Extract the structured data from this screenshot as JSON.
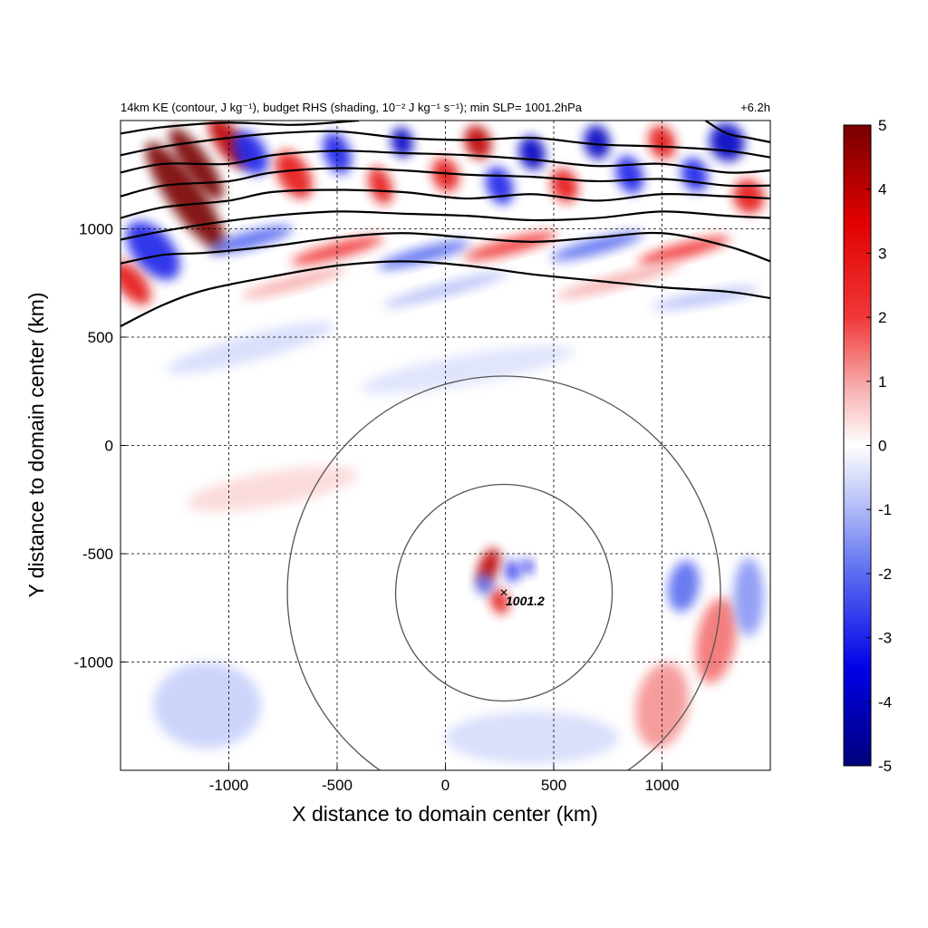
{
  "chart_data": {
    "type": "heatmap",
    "title_left": "14km KE (contour, J kg⁻¹), budget RHS (shading, 10⁻² J kg⁻¹ s⁻¹); min SLP= 1001.2hPa",
    "title_right": "+6.2h",
    "xlabel": "X distance to domain center (km)",
    "ylabel": "Y distance to domain center (km)",
    "xlim": [
      -1500,
      1500
    ],
    "ylim": [
      -1500,
      1500
    ],
    "x_ticks": [
      -1000,
      -500,
      0,
      500,
      1000
    ],
    "y_ticks": [
      1000,
      500,
      0,
      -500,
      -1000
    ],
    "grid": "dashed",
    "colorbar": {
      "min": -5,
      "max": 5,
      "ticks": [
        5,
        4,
        3,
        2,
        1,
        0,
        -1,
        -2,
        -3,
        -4,
        -5
      ],
      "colormap": "blue-white-red diverging",
      "colors": [
        "#00007a",
        "#0000e6",
        "#5a6cf0",
        "#c8d0fa",
        "#ffffff",
        "#f8c0c0",
        "#f03030",
        "#e00000",
        "#780000"
      ]
    },
    "storm_center": {
      "x": 270,
      "y": -680,
      "label": "1001.2"
    },
    "radius_circles_km": [
      500,
      1000
    ],
    "ke_contours": [
      {
        "points": [
          [
            -1500,
            550
          ],
          [
            -1300,
            650
          ],
          [
            -1100,
            720
          ],
          [
            -800,
            780
          ],
          [
            -500,
            830
          ],
          [
            -200,
            850
          ],
          [
            100,
            830
          ],
          [
            400,
            790
          ],
          [
            700,
            760
          ],
          [
            1000,
            730
          ],
          [
            1300,
            710
          ],
          [
            1500,
            680
          ]
        ]
      },
      {
        "points": [
          [
            -1500,
            840
          ],
          [
            -1300,
            880
          ],
          [
            -1100,
            890
          ],
          [
            -800,
            920
          ],
          [
            -500,
            960
          ],
          [
            -200,
            980
          ],
          [
            100,
            960
          ],
          [
            400,
            940
          ],
          [
            700,
            960
          ],
          [
            1000,
            980
          ],
          [
            1300,
            920
          ],
          [
            1500,
            850
          ]
        ]
      },
      {
        "points": [
          [
            -1500,
            950
          ],
          [
            -1300,
            990
          ],
          [
            -1050,
            1030
          ],
          [
            -800,
            1060
          ],
          [
            -500,
            1080
          ],
          [
            -200,
            1070
          ],
          [
            100,
            1060
          ],
          [
            400,
            1040
          ],
          [
            700,
            1050
          ],
          [
            1000,
            1080
          ],
          [
            1300,
            1060
          ],
          [
            1500,
            1050
          ]
        ]
      },
      {
        "points": [
          [
            -1500,
            1050
          ],
          [
            -1300,
            1100
          ],
          [
            -1000,
            1130
          ],
          [
            -800,
            1170
          ],
          [
            -500,
            1180
          ],
          [
            -200,
            1170
          ],
          [
            100,
            1140
          ],
          [
            400,
            1160
          ],
          [
            700,
            1130
          ],
          [
            1000,
            1160
          ],
          [
            1300,
            1150
          ],
          [
            1500,
            1140
          ]
        ]
      },
      {
        "points": [
          [
            -1500,
            1150
          ],
          [
            -1300,
            1200
          ],
          [
            -1000,
            1220
          ],
          [
            -800,
            1260
          ],
          [
            -500,
            1280
          ],
          [
            -200,
            1270
          ],
          [
            100,
            1250
          ],
          [
            400,
            1240
          ],
          [
            700,
            1220
          ],
          [
            1000,
            1230
          ],
          [
            1300,
            1200
          ],
          [
            1500,
            1200
          ]
        ]
      },
      {
        "points": [
          [
            -1500,
            1260
          ],
          [
            -1300,
            1300
          ],
          [
            -1000,
            1300
          ],
          [
            -800,
            1340
          ],
          [
            -500,
            1360
          ],
          [
            -200,
            1350
          ],
          [
            100,
            1340
          ],
          [
            400,
            1320
          ],
          [
            700,
            1290
          ],
          [
            1000,
            1300
          ],
          [
            1300,
            1260
          ],
          [
            1500,
            1270
          ]
        ]
      },
      {
        "points": [
          [
            -1500,
            1340
          ],
          [
            -1300,
            1380
          ],
          [
            -1000,
            1420
          ],
          [
            -800,
            1440
          ],
          [
            -500,
            1450
          ],
          [
            -200,
            1420
          ],
          [
            100,
            1410
          ],
          [
            400,
            1420
          ],
          [
            700,
            1390
          ],
          [
            1000,
            1380
          ],
          [
            1300,
            1360
          ],
          [
            1500,
            1330
          ]
        ]
      },
      {
        "points": [
          [
            -1500,
            1440
          ],
          [
            -1300,
            1470
          ],
          [
            -1000,
            1490
          ],
          [
            -700,
            1480
          ],
          [
            -400,
            1500
          ]
        ]
      },
      {
        "points": [
          [
            1200,
            1500
          ],
          [
            1300,
            1440
          ],
          [
            1400,
            1420
          ],
          [
            1500,
            1400
          ]
        ]
      }
    ],
    "shading_features": [
      {
        "x": -1200,
        "y": 1150,
        "value": 5,
        "rx": 80,
        "ry": 300,
        "rot": -35
      },
      {
        "x": -1150,
        "y": 1300,
        "value": 5,
        "rx": 60,
        "ry": 200,
        "rot": -35
      },
      {
        "x": -1000,
        "y": 1400,
        "value": 4,
        "rx": 60,
        "ry": 140,
        "rot": -35
      },
      {
        "x": -1350,
        "y": 900,
        "value": -3,
        "rx": 90,
        "ry": 160,
        "rot": -40
      },
      {
        "x": -1450,
        "y": 750,
        "value": 3,
        "rx": 60,
        "ry": 120,
        "rot": -40
      },
      {
        "x": -900,
        "y": 1350,
        "value": -3,
        "rx": 70,
        "ry": 110,
        "rot": -30
      },
      {
        "x": -700,
        "y": 1250,
        "value": 3,
        "rx": 70,
        "ry": 120,
        "rot": -30
      },
      {
        "x": -500,
        "y": 1350,
        "value": -3,
        "rx": 60,
        "ry": 100,
        "rot": -20
      },
      {
        "x": -300,
        "y": 1200,
        "value": 3,
        "rx": 50,
        "ry": 90,
        "rot": -20
      },
      {
        "x": -200,
        "y": 1400,
        "value": -4,
        "rx": 50,
        "ry": 70,
        "rot": -10
      },
      {
        "x": 0,
        "y": 1250,
        "value": 3,
        "rx": 60,
        "ry": 80,
        "rot": -20
      },
      {
        "x": 150,
        "y": 1400,
        "value": 4,
        "rx": 60,
        "ry": 80,
        "rot": -20
      },
      {
        "x": 250,
        "y": 1200,
        "value": -3,
        "rx": 60,
        "ry": 90,
        "rot": -20
      },
      {
        "x": 400,
        "y": 1350,
        "value": -4,
        "rx": 60,
        "ry": 80,
        "rot": -15
      },
      {
        "x": 550,
        "y": 1200,
        "value": 3,
        "rx": 60,
        "ry": 80,
        "rot": -20
      },
      {
        "x": 700,
        "y": 1400,
        "value": -4,
        "rx": 60,
        "ry": 80,
        "rot": -10
      },
      {
        "x": 850,
        "y": 1250,
        "value": -3,
        "rx": 60,
        "ry": 90,
        "rot": -20
      },
      {
        "x": 1000,
        "y": 1400,
        "value": 3,
        "rx": 60,
        "ry": 80,
        "rot": -20
      },
      {
        "x": 1150,
        "y": 1250,
        "value": -3,
        "rx": 60,
        "ry": 80,
        "rot": -20
      },
      {
        "x": 1300,
        "y": 1400,
        "value": -4,
        "rx": 80,
        "ry": 90,
        "rot": -20
      },
      {
        "x": 1400,
        "y": 1150,
        "value": 3,
        "rx": 70,
        "ry": 80,
        "rot": -20
      },
      {
        "x": -900,
        "y": 950,
        "value": -2,
        "rx": 200,
        "ry": 40,
        "rot": -15
      },
      {
        "x": -500,
        "y": 900,
        "value": 2,
        "rx": 220,
        "ry": 35,
        "rot": -15
      },
      {
        "x": -100,
        "y": 880,
        "value": -2,
        "rx": 220,
        "ry": 35,
        "rot": -15
      },
      {
        "x": 300,
        "y": 920,
        "value": 2,
        "rx": 220,
        "ry": 35,
        "rot": -15
      },
      {
        "x": 700,
        "y": 920,
        "value": -2,
        "rx": 220,
        "ry": 35,
        "rot": -15
      },
      {
        "x": 1100,
        "y": 900,
        "value": 2,
        "rx": 220,
        "ry": 35,
        "rot": -15
      },
      {
        "x": -700,
        "y": 750,
        "value": 1,
        "rx": 250,
        "ry": 30,
        "rot": -15
      },
      {
        "x": 0,
        "y": 720,
        "value": -1,
        "rx": 300,
        "ry": 30,
        "rot": -15
      },
      {
        "x": 800,
        "y": 760,
        "value": 1,
        "rx": 300,
        "ry": 30,
        "rot": -15
      },
      {
        "x": 1200,
        "y": 680,
        "value": -1,
        "rx": 250,
        "ry": 30,
        "rot": -10
      },
      {
        "x": -900,
        "y": 450,
        "value": -0.6,
        "rx": 400,
        "ry": 60,
        "rot": -15
      },
      {
        "x": 100,
        "y": 350,
        "value": -0.5,
        "rx": 500,
        "ry": 70,
        "rot": -10
      },
      {
        "x": -800,
        "y": -200,
        "value": 0.5,
        "rx": 400,
        "ry": 80,
        "rot": -10
      },
      {
        "x": -1100,
        "y": -1200,
        "value": -0.8,
        "rx": 250,
        "ry": 200,
        "rot": 0
      },
      {
        "x": 200,
        "y": -560,
        "value": 4,
        "rx": 45,
        "ry": 90,
        "rot": 20
      },
      {
        "x": 250,
        "y": -720,
        "value": 3,
        "rx": 40,
        "ry": 60,
        "rot": -20
      },
      {
        "x": 310,
        "y": -580,
        "value": -3,
        "rx": 30,
        "ry": 50,
        "rot": 0
      },
      {
        "x": 380,
        "y": -560,
        "value": -3,
        "rx": 25,
        "ry": 35,
        "rot": 0
      },
      {
        "x": 180,
        "y": -640,
        "value": -2,
        "rx": 40,
        "ry": 50,
        "rot": 0
      },
      {
        "x": 1100,
        "y": -650,
        "value": -2,
        "rx": 70,
        "ry": 120,
        "rot": 10
      },
      {
        "x": 1250,
        "y": -900,
        "value": 1.5,
        "rx": 90,
        "ry": 200,
        "rot": 10
      },
      {
        "x": 1000,
        "y": -1200,
        "value": 1.2,
        "rx": 120,
        "ry": 200,
        "rot": 10
      },
      {
        "x": 1400,
        "y": -700,
        "value": -1.5,
        "rx": 70,
        "ry": 180,
        "rot": 0
      },
      {
        "x": 400,
        "y": -1350,
        "value": -0.6,
        "rx": 400,
        "ry": 120,
        "rot": 0
      }
    ]
  }
}
